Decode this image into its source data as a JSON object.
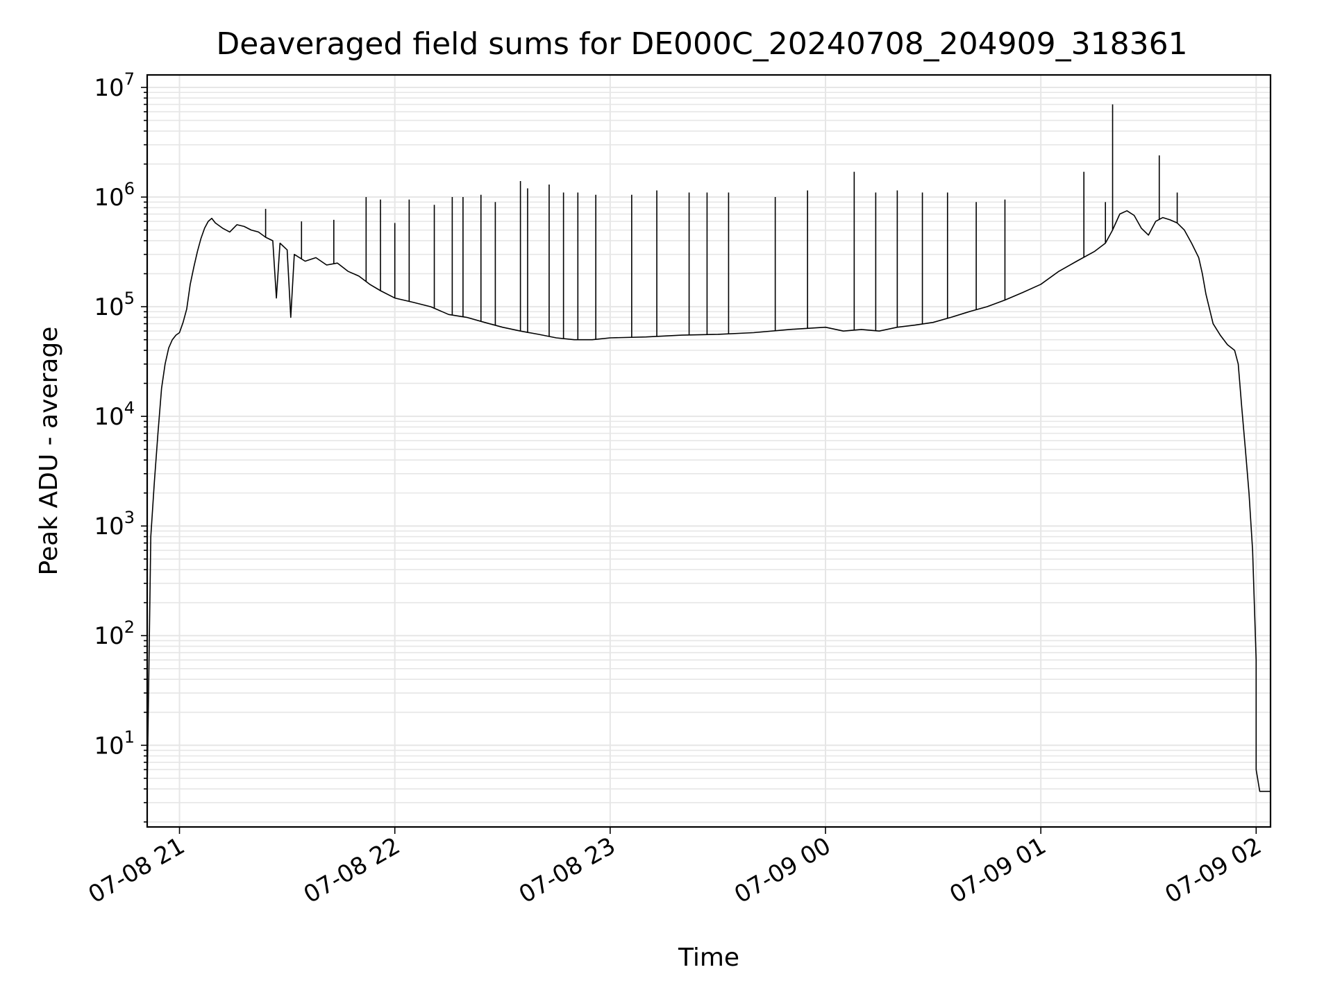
{
  "chart_data": {
    "type": "line",
    "title": "Deaveraged field sums for DE000C_20240708_204909_318361",
    "xlabel": "Time",
    "ylabel": "Peak ADU - average",
    "yscale": "log",
    "ylim": [
      1.8,
      13000000
    ],
    "xlim": [
      "2024-07-08 20:51",
      "2024-07-09 02:04"
    ],
    "grid": true,
    "legend": "none",
    "x_ticks": [
      {
        "label": "07-08 21",
        "time": "2024-07-08 21:00"
      },
      {
        "label": "07-08 22",
        "time": "2024-07-08 22:00"
      },
      {
        "label": "07-08 23",
        "time": "2024-07-08 23:00"
      },
      {
        "label": "07-09 00",
        "time": "2024-07-09 00:00"
      },
      {
        "label": "07-09 01",
        "time": "2024-07-09 01:00"
      },
      {
        "label": "07-09 02",
        "time": "2024-07-09 02:00"
      }
    ],
    "y_ticks": [
      {
        "base": "10",
        "exp": "1",
        "value": 10
      },
      {
        "base": "10",
        "exp": "2",
        "value": 100
      },
      {
        "base": "10",
        "exp": "3",
        "value": 1000
      },
      {
        "base": "10",
        "exp": "4",
        "value": 10000
      },
      {
        "base": "10",
        "exp": "5",
        "value": 100000
      },
      {
        "base": "10",
        "exp": "6",
        "value": 1000000
      },
      {
        "base": "10",
        "exp": "7",
        "value": 10000000
      }
    ],
    "line_color": "#000000",
    "grid_color": "#e6e6e6",
    "series": [
      {
        "points": [
          [
            "2024-07-08 20:51",
            4
          ],
          [
            "2024-07-08 20:52",
            800
          ],
          [
            "2024-07-08 20:53",
            2500
          ],
          [
            "2024-07-08 20:54",
            7000
          ],
          [
            "2024-07-08 20:55",
            18000
          ],
          [
            "2024-07-08 20:56",
            30000
          ],
          [
            "2024-07-08 20:57",
            42000
          ],
          [
            "2024-07-08 20:58",
            50000
          ],
          [
            "2024-07-08 20:59",
            55000
          ],
          [
            "2024-07-08 21:00",
            58000
          ],
          [
            "2024-07-08 21:01",
            72000
          ],
          [
            "2024-07-08 21:02",
            95000
          ],
          [
            "2024-07-08 21:03",
            160000
          ],
          [
            "2024-07-08 21:04",
            230000
          ],
          [
            "2024-07-08 21:05",
            320000
          ],
          [
            "2024-07-08 21:06",
            420000
          ],
          [
            "2024-07-08 21:07",
            520000
          ],
          [
            "2024-07-08 21:08",
            600000
          ],
          [
            "2024-07-08 21:09",
            640000
          ],
          [
            "2024-07-08 21:10",
            580000
          ],
          [
            "2024-07-08 21:12",
            520000
          ],
          [
            "2024-07-08 21:14",
            480000
          ],
          [
            "2024-07-08 21:16",
            560000
          ],
          [
            "2024-07-08 21:18",
            540000
          ],
          [
            "2024-07-08 21:20",
            500000
          ],
          [
            "2024-07-08 21:22",
            480000
          ],
          [
            "2024-07-08 21:24",
            430000
          ],
          [
            "2024-07-08 21:26",
            400000
          ],
          [
            "2024-07-08 21:27",
            120000
          ],
          [
            "2024-07-08 21:28",
            380000
          ],
          [
            "2024-07-08 21:30",
            330000
          ],
          [
            "2024-07-08 21:31",
            80000
          ],
          [
            "2024-07-08 21:32",
            300000
          ],
          [
            "2024-07-08 21:35",
            260000
          ],
          [
            "2024-07-08 21:38",
            280000
          ],
          [
            "2024-07-08 21:41",
            240000
          ],
          [
            "2024-07-08 21:44",
            250000
          ],
          [
            "2024-07-08 21:47",
            210000
          ],
          [
            "2024-07-08 21:50",
            190000
          ],
          [
            "2024-07-08 21:53",
            160000
          ],
          [
            "2024-07-08 21:56",
            140000
          ],
          [
            "2024-07-08 22:00",
            120000
          ],
          [
            "2024-07-08 22:05",
            110000
          ],
          [
            "2024-07-08 22:10",
            100000
          ],
          [
            "2024-07-08 22:15",
            85000
          ],
          [
            "2024-07-08 22:20",
            80000
          ],
          [
            "2024-07-08 22:25",
            72000
          ],
          [
            "2024-07-08 22:30",
            65000
          ],
          [
            "2024-07-08 22:35",
            60000
          ],
          [
            "2024-07-08 22:40",
            56000
          ],
          [
            "2024-07-08 22:45",
            52000
          ],
          [
            "2024-07-08 22:50",
            50000
          ],
          [
            "2024-07-08 22:55",
            50000
          ],
          [
            "2024-07-08 23:00",
            52000
          ],
          [
            "2024-07-08 23:10",
            53000
          ],
          [
            "2024-07-08 23:20",
            55000
          ],
          [
            "2024-07-08 23:30",
            56000
          ],
          [
            "2024-07-08 23:40",
            58000
          ],
          [
            "2024-07-08 23:50",
            62000
          ],
          [
            "2024-07-09 00:00",
            65000
          ],
          [
            "2024-07-09 00:05",
            60000
          ],
          [
            "2024-07-09 00:10",
            62000
          ],
          [
            "2024-07-09 00:15",
            60000
          ],
          [
            "2024-07-09 00:20",
            65000
          ],
          [
            "2024-07-09 00:25",
            68000
          ],
          [
            "2024-07-09 00:30",
            72000
          ],
          [
            "2024-07-09 00:35",
            80000
          ],
          [
            "2024-07-09 00:40",
            90000
          ],
          [
            "2024-07-09 00:45",
            100000
          ],
          [
            "2024-07-09 00:50",
            115000
          ],
          [
            "2024-07-09 00:55",
            135000
          ],
          [
            "2024-07-09 01:00",
            160000
          ],
          [
            "2024-07-09 01:05",
            210000
          ],
          [
            "2024-07-09 01:10",
            260000
          ],
          [
            "2024-07-09 01:15",
            320000
          ],
          [
            "2024-07-09 01:18",
            380000
          ],
          [
            "2024-07-09 01:20",
            500000
          ],
          [
            "2024-07-09 01:22",
            700000
          ],
          [
            "2024-07-09 01:24",
            750000
          ],
          [
            "2024-07-09 01:26",
            680000
          ],
          [
            "2024-07-09 01:28",
            520000
          ],
          [
            "2024-07-09 01:30",
            450000
          ],
          [
            "2024-07-09 01:32",
            600000
          ],
          [
            "2024-07-09 01:34",
            650000
          ],
          [
            "2024-07-09 01:36",
            620000
          ],
          [
            "2024-07-09 01:38",
            580000
          ],
          [
            "2024-07-09 01:40",
            500000
          ],
          [
            "2024-07-09 01:42",
            380000
          ],
          [
            "2024-07-09 01:44",
            280000
          ],
          [
            "2024-07-09 01:45",
            200000
          ],
          [
            "2024-07-09 01:46",
            130000
          ],
          [
            "2024-07-09 01:48",
            70000
          ],
          [
            "2024-07-09 01:50",
            55000
          ],
          [
            "2024-07-09 01:52",
            45000
          ],
          [
            "2024-07-09 01:54",
            40000
          ],
          [
            "2024-07-09 01:55",
            30000
          ],
          [
            "2024-07-09 01:56",
            12000
          ],
          [
            "2024-07-09 01:57",
            5000
          ],
          [
            "2024-07-09 01:58",
            2000
          ],
          [
            "2024-07-09 01:59",
            600
          ],
          [
            "2024-07-09 02:00",
            60
          ],
          [
            "2024-07-09 02:00",
            6
          ],
          [
            "2024-07-09 02:01",
            3.8
          ],
          [
            "2024-07-09 02:04",
            3.8
          ]
        ],
        "spikes": [
          [
            "2024-07-08 21:24",
            780000
          ],
          [
            "2024-07-08 21:34",
            600000
          ],
          [
            "2024-07-08 21:43",
            620000
          ],
          [
            "2024-07-08 21:52",
            1000000
          ],
          [
            "2024-07-08 21:56",
            950000
          ],
          [
            "2024-07-08 22:00",
            580000
          ],
          [
            "2024-07-08 22:04",
            950000
          ],
          [
            "2024-07-08 22:11",
            850000
          ],
          [
            "2024-07-08 22:16",
            1000000
          ],
          [
            "2024-07-08 22:19",
            1000000
          ],
          [
            "2024-07-08 22:24",
            1050000
          ],
          [
            "2024-07-08 22:28",
            900000
          ],
          [
            "2024-07-08 22:35",
            1400000
          ],
          [
            "2024-07-08 22:37",
            1200000
          ],
          [
            "2024-07-08 22:43",
            1300000
          ],
          [
            "2024-07-08 22:47",
            1100000
          ],
          [
            "2024-07-08 22:51",
            1100000
          ],
          [
            "2024-07-08 22:56",
            1050000
          ],
          [
            "2024-07-08 23:06",
            1050000
          ],
          [
            "2024-07-08 23:13",
            1150000
          ],
          [
            "2024-07-08 23:22",
            1100000
          ],
          [
            "2024-07-08 23:27",
            1100000
          ],
          [
            "2024-07-08 23:33",
            1100000
          ],
          [
            "2024-07-08 23:46",
            1000000
          ],
          [
            "2024-07-08 23:55",
            1150000
          ],
          [
            "2024-07-09 00:08",
            1700000
          ],
          [
            "2024-07-09 00:14",
            1100000
          ],
          [
            "2024-07-09 00:20",
            1150000
          ],
          [
            "2024-07-09 00:27",
            1100000
          ],
          [
            "2024-07-09 00:34",
            1100000
          ],
          [
            "2024-07-09 00:42",
            900000
          ],
          [
            "2024-07-09 00:50",
            950000
          ],
          [
            "2024-07-09 01:12",
            1700000
          ],
          [
            "2024-07-09 01:18",
            900000
          ],
          [
            "2024-07-09 01:20",
            7000000
          ],
          [
            "2024-07-09 01:33",
            2400000
          ],
          [
            "2024-07-09 01:38",
            1100000
          ]
        ]
      }
    ]
  }
}
